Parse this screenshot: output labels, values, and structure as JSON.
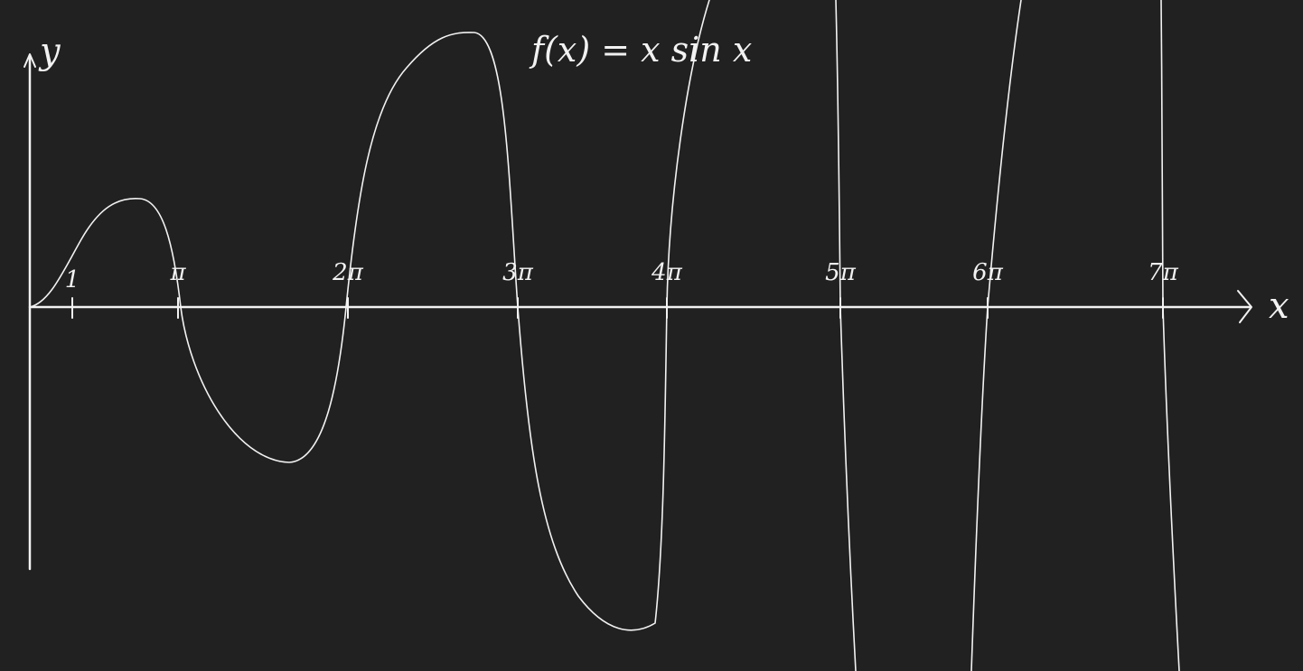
{
  "y_label": "y",
  "x_label": "x",
  "formula": "f(x) = x sin x",
  "ticks": [
    "1",
    "π",
    "2π",
    "3π",
    "4π",
    "5π",
    "6π",
    "7π"
  ]
}
